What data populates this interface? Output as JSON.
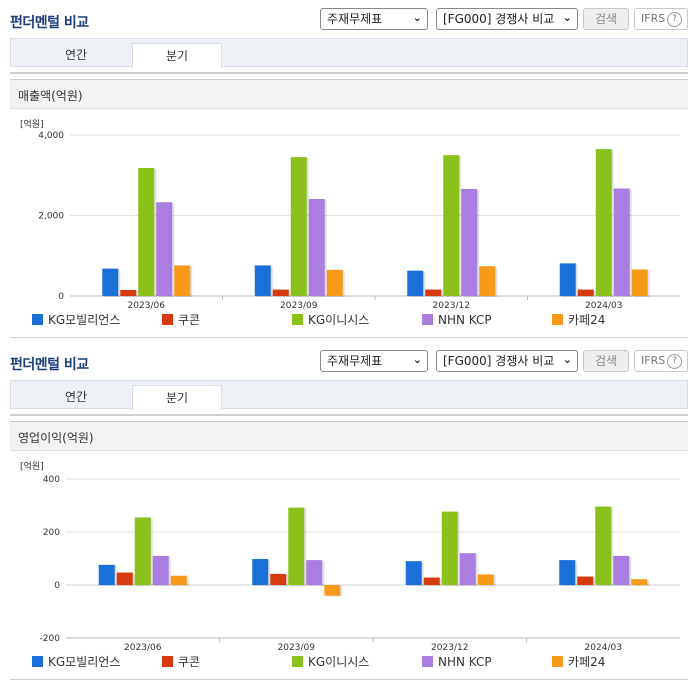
{
  "colors": {
    "KG모빌리언스": "#1a6fd8",
    "쿠콘": "#d63a0f",
    "KG이니시스": "#8cc01a",
    "NHN KCP": "#a97ee0",
    "카페24": "#f79a1a"
  },
  "panels": [
    {
      "title": "펀더멘털 비교",
      "select1": "주재무제표",
      "select2": "[FG000] 경쟁사 비교",
      "search_label": "검색",
      "ifrs_label": "IFRS",
      "help_icon": "?",
      "tabs": [
        "연간",
        "분기"
      ],
      "active_tab": "분기",
      "metric": "매출액(억원)",
      "unit": "[억원]"
    },
    {
      "title": "펀더멘털 비교",
      "select1": "주재무제표",
      "select2": "[FG000] 경쟁사 비교",
      "search_label": "검색",
      "ifrs_label": "IFRS",
      "help_icon": "?",
      "tabs": [
        "연간",
        "분기"
      ],
      "active_tab": "분기",
      "metric": "영업이익(억원)",
      "unit": "[억원]"
    }
  ],
  "chart_data": [
    {
      "type": "bar",
      "title": "매출액(억원)",
      "ylabel": "[억원]",
      "categories": [
        "2023/06",
        "2023/09",
        "2023/12",
        "2024/03"
      ],
      "ylim": [
        0,
        4000
      ],
      "yticks": [
        "0",
        "2,000",
        "4,000"
      ],
      "ytick_values": [
        0,
        2000,
        4000
      ],
      "legend_position": "bottom",
      "series": [
        {
          "name": "KG모빌리언스",
          "values": [
            680,
            760,
            630,
            810
          ]
        },
        {
          "name": "쿠콘",
          "values": [
            150,
            160,
            160,
            160
          ]
        },
        {
          "name": "KG이니시스",
          "values": [
            3180,
            3450,
            3500,
            3650
          ]
        },
        {
          "name": "NHN KCP",
          "values": [
            2330,
            2410,
            2660,
            2670
          ]
        },
        {
          "name": "카페24",
          "values": [
            760,
            650,
            740,
            660
          ]
        }
      ]
    },
    {
      "type": "bar",
      "title": "영업이익(억원)",
      "ylabel": "[억원]",
      "categories": [
        "2023/06",
        "2023/09",
        "2023/12",
        "2024/03"
      ],
      "ylim": [
        -200,
        400
      ],
      "yticks": [
        "-200",
        "0",
        "200",
        "400"
      ],
      "ytick_values": [
        -200,
        0,
        200,
        400
      ],
      "legend_position": "bottom",
      "series": [
        {
          "name": "KG모빌리언스",
          "values": [
            76,
            98,
            90,
            94
          ]
        },
        {
          "name": "쿠콘",
          "values": [
            47,
            42,
            28,
            32
          ]
        },
        {
          "name": "KG이니시스",
          "values": [
            255,
            292,
            277,
            296
          ]
        },
        {
          "name": "NHN KCP",
          "values": [
            110,
            94,
            120,
            110
          ]
        },
        {
          "name": "카페24",
          "values": [
            35,
            -40,
            40,
            22
          ]
        }
      ]
    }
  ]
}
